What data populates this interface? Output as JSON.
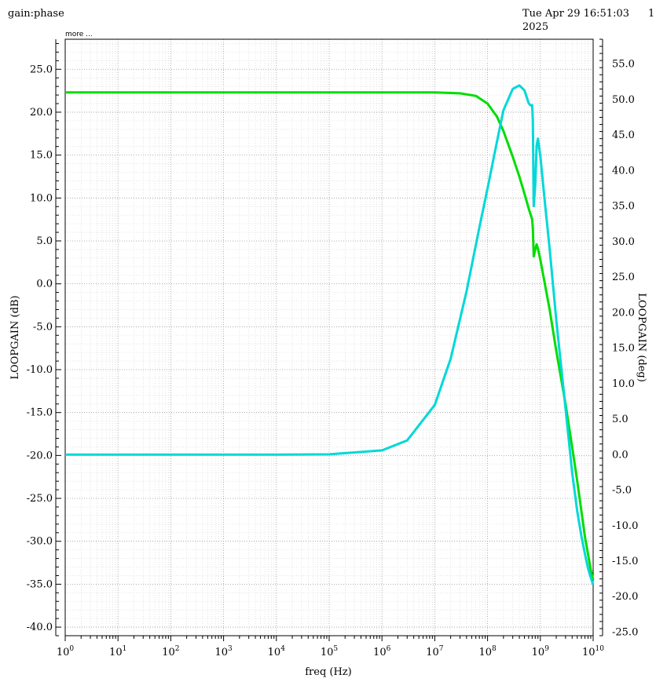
{
  "header": {
    "title": "gain:phase",
    "timestamp_line1": "Tue Apr 29 16:51:03",
    "timestamp_line2": "2025",
    "page": "1"
  },
  "more_label": "more ...",
  "chart_data": {
    "type": "line",
    "xlabel": "freq (Hz)",
    "ylabel_left": "LOOPGAIN (dB)",
    "ylabel_right": "LOOPGAIN (deg)",
    "x_scale": "log",
    "xlim": [
      1,
      10000000000
    ],
    "ylim_left": [
      -41,
      28.5
    ],
    "ylim_right": [
      -25.5,
      58.5
    ],
    "grid": true,
    "x_ticks": [
      "10^0",
      "10^1",
      "10^2",
      "10^3",
      "10^4",
      "10^5",
      "10^6",
      "10^7",
      "10^8",
      "10^9",
      "10^10"
    ],
    "y_ticks_left": [
      "-40.0",
      "-35.0",
      "-30.0",
      "-25.0",
      "-20.0",
      "-15.0",
      "-10.0",
      "-5.0",
      "0.0",
      "5.0",
      "10.0",
      "15.0",
      "20.0",
      "25.0"
    ],
    "y_ticks_right": [
      "-25.0",
      "-20.0",
      "-15.0",
      "-10.0",
      "-5.0",
      "0.0",
      "5.0",
      "10.0",
      "15.0",
      "20.0",
      "25.0",
      "30.0",
      "35.0",
      "40.0",
      "45.0",
      "50.0",
      "55.0"
    ],
    "series": [
      {
        "color": "#00dd00",
        "axis": "left",
        "points": [
          [
            1,
            22.3
          ],
          [
            10,
            22.3
          ],
          [
            100,
            22.3
          ],
          [
            1000,
            22.3
          ],
          [
            10000,
            22.3
          ],
          [
            100000,
            22.3
          ],
          [
            1000000,
            22.3
          ],
          [
            10000000,
            22.3
          ],
          [
            30000000,
            22.2
          ],
          [
            60000000,
            21.9
          ],
          [
            100000000,
            21.0
          ],
          [
            150000000,
            19.5
          ],
          [
            200000000,
            17.8
          ],
          [
            300000000,
            14.8
          ],
          [
            400000000,
            12.5
          ],
          [
            500000000,
            10.5
          ],
          [
            600000000,
            8.8
          ],
          [
            700000000,
            7.5
          ],
          [
            720000000,
            6.5
          ],
          [
            750000000,
            3.2
          ],
          [
            800000000,
            4.0
          ],
          [
            850000000,
            4.6
          ],
          [
            900000000,
            4.1
          ],
          [
            1000000000,
            2.8
          ],
          [
            1500000000,
            -3.0
          ],
          [
            2000000000,
            -7.8
          ],
          [
            3000000000,
            -14.0
          ],
          [
            4000000000,
            -19.0
          ],
          [
            5000000000,
            -23.0
          ],
          [
            6000000000,
            -26.5
          ],
          [
            7000000000,
            -29.5
          ],
          [
            8000000000,
            -31.5
          ],
          [
            9000000000,
            -33.3
          ],
          [
            10000000000,
            -34.5
          ]
        ]
      },
      {
        "color": "#00d8d8",
        "axis": "right",
        "points": [
          [
            1,
            0.0
          ],
          [
            10,
            0.0
          ],
          [
            100,
            0.0
          ],
          [
            1000,
            0.0
          ],
          [
            10000,
            0.0
          ],
          [
            100000,
            0.05
          ],
          [
            1000000,
            0.6
          ],
          [
            3000000,
            2.0
          ],
          [
            10000000,
            7.0
          ],
          [
            20000000,
            13.5
          ],
          [
            40000000,
            23.0
          ],
          [
            70000000,
            32.0
          ],
          [
            100000000,
            37.5
          ],
          [
            150000000,
            44.0
          ],
          [
            200000000,
            48.5
          ],
          [
            300000000,
            51.5
          ],
          [
            400000000,
            52.0
          ],
          [
            500000000,
            51.3
          ],
          [
            600000000,
            49.5
          ],
          [
            650000000,
            49.2
          ],
          [
            700000000,
            49.2
          ],
          [
            720000000,
            47.0
          ],
          [
            750000000,
            35.0
          ],
          [
            800000000,
            38.0
          ],
          [
            850000000,
            43.5
          ],
          [
            900000000,
            44.5
          ],
          [
            1000000000,
            42.0
          ],
          [
            1200000000,
            36.0
          ],
          [
            1500000000,
            29.0
          ],
          [
            2000000000,
            19.0
          ],
          [
            3000000000,
            6.5
          ],
          [
            4000000000,
            -2.5
          ],
          [
            5000000000,
            -8.0
          ],
          [
            6000000000,
            -11.5
          ],
          [
            7000000000,
            -14.0
          ],
          [
            8000000000,
            -16.0
          ],
          [
            9000000000,
            -17.3
          ],
          [
            10000000000,
            -18.3
          ]
        ]
      }
    ]
  }
}
